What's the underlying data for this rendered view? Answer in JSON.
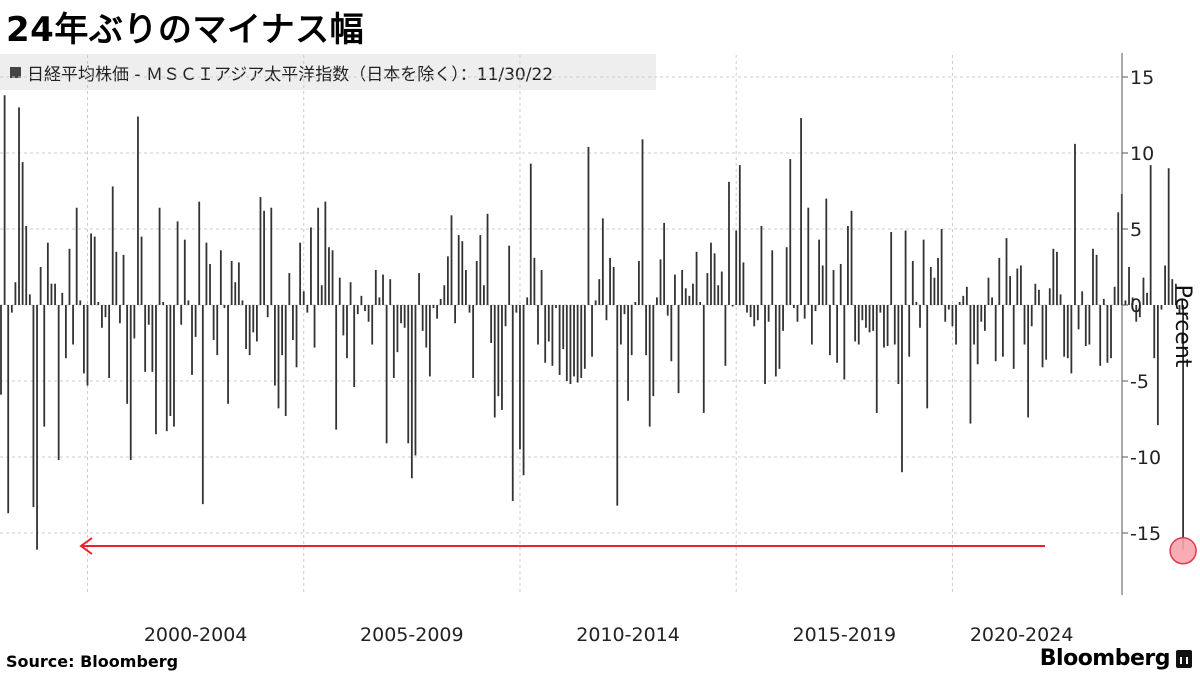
{
  "title": "24年ぶりのマイナス幅",
  "legend": {
    "label": "日経平均株価 - ＭＳＣＩアジア太平洋指数（日本を除く）：11/30/22",
    "color": "#444444"
  },
  "source": "Source:  Bloomberg",
  "brand": "Bloomberg",
  "chart_data": {
    "type": "bar",
    "title": "24年ぶりのマイナス幅",
    "ylabel": "Percent",
    "ylim": [
      -19,
      17
    ],
    "yticks": [
      15,
      10,
      5,
      0,
      -5,
      -10,
      -15
    ],
    "x_group_labels": [
      "2000-2004",
      "2005-2009",
      "2010-2014",
      "2015-2019",
      "2020-2024"
    ],
    "x_range": [
      1998.0,
      2023.25
    ],
    "grid": true,
    "bar_color": "#333333",
    "x_start": 1998.0,
    "x_step": 0.083333,
    "series": [
      {
        "name": "日経平均株価 - ＭＳＣＩアジア太平洋指数（日本を除く）",
        "values": [
          -5.9,
          13.8,
          -13.7,
          -0.5,
          1.5,
          13,
          9.4,
          5.2,
          0.7,
          -13.3,
          -16.1,
          2.5,
          -8,
          4.1,
          1.4,
          1.4,
          -10.2,
          0.8,
          -3.5,
          3.7,
          -2.6,
          6.4,
          0.3,
          -4.5,
          -5.3,
          4.7,
          4.5,
          0.2,
          -1.5,
          -0.8,
          -4.8,
          7.8,
          3.5,
          -1.2,
          3.3,
          -6.5,
          -10.2,
          -2.2,
          12.4,
          4.5,
          -4.4,
          -1.3,
          -4.4,
          -8.5,
          6.4,
          0.2,
          -8.3,
          -7.3,
          -8,
          5.5,
          -1.3,
          4.3,
          0.3,
          -4.6,
          -2.1,
          6.8,
          -13.1,
          4.1,
          2.7,
          -2.3,
          -3.3,
          3.6,
          -0.2,
          -6.5,
          2.9,
          1.5,
          2.8,
          0.3,
          -2.9,
          -3.3,
          -1.8,
          -2.4,
          7.1,
          6.2,
          -0.8,
          6.4,
          -5.3,
          -6.8,
          -3.3,
          -7.3,
          2.1,
          -2.3,
          -4.1,
          4.1,
          0.9,
          -0.5,
          5.1,
          -2.8,
          6.4,
          1.3,
          6.8,
          3.8,
          3.6,
          -8.2,
          1.8,
          -2,
          -3.5,
          1.5,
          -5.4,
          -0.6,
          0.6,
          -0.4,
          -1.1,
          -2.6,
          2.3,
          0.5,
          2.0,
          -9.1,
          1.7,
          -4.8,
          -3.1,
          -1.2,
          -1.5,
          -9.1,
          -11.4,
          -9.9,
          2.1,
          -1.7,
          -2.8,
          -4.7,
          -0.2,
          -0.9,
          0.4,
          1.3,
          3.2,
          5.9,
          -1.2,
          4.6,
          4.2,
          2.3,
          -0.5,
          -4.8,
          2.9,
          4.6,
          1.3,
          6.0,
          -2.5,
          -7.4,
          -6.0,
          -6.9,
          -1.4,
          3.9,
          -12.9,
          -0.5,
          -9.5,
          -11.2,
          0.5,
          9.3,
          3.1,
          -2.6,
          2.3,
          -3.8,
          -2.4,
          -4.0,
          -0.2,
          -4.6,
          -2.9,
          -5.0,
          -5.2,
          -4.7,
          -5.1,
          -4.8,
          -4.2,
          10.4,
          -3.4,
          0.3,
          1.7,
          5.7,
          -1.0,
          3.1,
          2.5,
          -13.2,
          -2.6,
          -0.6,
          -6.3,
          -3.3,
          0.2,
          2.9,
          10.9,
          -3.3,
          -8.0,
          -6.0,
          0.5,
          3.0,
          5.4,
          -0.7,
          -3.7,
          2.0,
          -5.8,
          2.3,
          1.1,
          0.6,
          1.4,
          3.5,
          0.2,
          -7.1,
          2.1,
          4.1,
          3.4,
          1.3,
          2.2,
          -4.0,
          8.1,
          -0.1,
          4.9,
          9.2,
          2.8,
          -0.5,
          -0.8,
          -1.4,
          -1.0,
          5.2,
          -5.2,
          -1.1,
          3.6,
          -4.7,
          -4.2,
          -1.7,
          3.8,
          9.6,
          -0.2,
          -1.1,
          12.3,
          -0.9,
          6.4,
          -2.6,
          -0.4,
          4.3,
          2.6,
          7.0,
          -3.3,
          2.3,
          -3.8,
          2.7,
          -4.9,
          5.2,
          6.2,
          -2.4,
          -2.6,
          -1.0,
          -1.5,
          -1.8,
          -1.7,
          -7.1,
          -0.5,
          -2.8,
          -2.7,
          4.8,
          -2.6,
          -5.2,
          -11.0,
          4.9,
          -3.4,
          2.9,
          0.2,
          -1.5,
          4.3,
          -6.8,
          2.5,
          1.8,
          3.1,
          5.0,
          -1.1,
          -0.3,
          -1.4,
          -2.6,
          0.2,
          0.6,
          1.2,
          -7.8,
          -2.6,
          -3.9,
          -1.1,
          -1.7,
          1.8,
          0.5,
          -3.7,
          3.1,
          -3.4,
          4.4,
          1.9,
          -4.2,
          2.4,
          2.6,
          -2.6,
          -7.4,
          -1.4,
          1.4,
          1.0,
          -4.1,
          -3.6,
          1.1,
          3.7,
          3.5,
          0.7,
          -3.4,
          -3.5,
          -4.5,
          10.6,
          -1.6,
          0.9,
          -2.7,
          -2.6,
          3.7,
          3.3,
          -4.0,
          0.4,
          -3.8,
          -3.5,
          1.2,
          6.1,
          7.3,
          0.3,
          2.5,
          0.5,
          -1.1,
          -0.8,
          1.8,
          0.8,
          9.2,
          -3.5,
          -7.9,
          -0.3,
          2.6,
          9.0,
          1.7,
          1.4,
          -0.6,
          -16.1
        ]
      }
    ],
    "annotation": {
      "type": "arrow",
      "direction": "left",
      "marks_value": -16.1,
      "color": "#e8242a"
    }
  }
}
